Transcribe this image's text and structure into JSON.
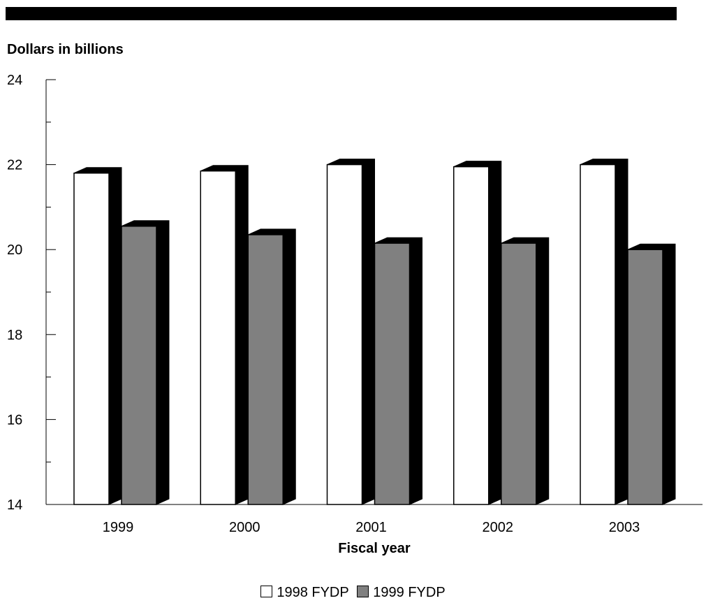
{
  "chart_data": {
    "type": "bar",
    "title": "",
    "ylabel": "Dollars in billions",
    "xlabel": "Fiscal year",
    "categories": [
      "1999",
      "2000",
      "2001",
      "2002",
      "2003"
    ],
    "series": [
      {
        "name": "1998 FYDP",
        "values": [
          21.8,
          21.85,
          22.0,
          21.95,
          22.0
        ],
        "color": "#ffffff"
      },
      {
        "name": "1999 FYDP",
        "values": [
          20.55,
          20.35,
          20.15,
          20.15,
          20.0
        ],
        "color": "#808080"
      }
    ],
    "ylim": [
      14,
      24
    ],
    "yticks": [
      "14",
      "16",
      "18",
      "20",
      "22",
      "24"
    ],
    "legend_position": "bottom-center",
    "grid": false,
    "style": "3d-shadowed-bars"
  }
}
